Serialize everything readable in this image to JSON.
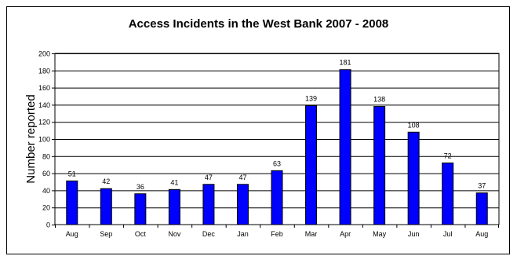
{
  "chart_data": {
    "type": "bar",
    "title": "Access Incidents in the West Bank 2007 - 2008",
    "xlabel": "",
    "ylabel": "Number reported",
    "ylim": [
      0,
      200
    ],
    "yticks": [
      0,
      20,
      40,
      60,
      80,
      100,
      120,
      140,
      160,
      180,
      200
    ],
    "categories": [
      "Aug",
      "Sep",
      "Oct",
      "Nov",
      "Dec",
      "Jan",
      "Feb",
      "Mar",
      "Apr",
      "May",
      "Jun",
      "Jul",
      "Aug"
    ],
    "values": [
      51,
      42,
      36,
      41,
      47,
      47,
      63,
      139,
      181,
      138,
      108,
      72,
      37
    ],
    "grid": true,
    "bar_color": "#0000FF"
  }
}
